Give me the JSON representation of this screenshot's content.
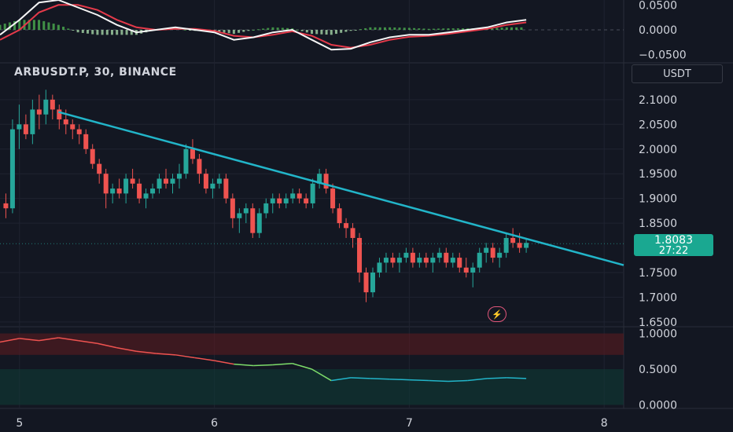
{
  "symbol_line": "ARBUSDT.P, 30, BINANCE",
  "currency_button": "USDT",
  "last_price": "1.8083",
  "countdown": "27:22",
  "colors": {
    "background": "#131722",
    "up": "#26a69a",
    "down": "#ef5350",
    "trendline": "#22b5c9",
    "macd_line": "#f5f5f5",
    "signal_line": "#e53a4a",
    "hist_up": "#4caf50",
    "hist_down": "#a5d6a7",
    "axis_text": "#d1d4dc",
    "price_tag": "#1aa891"
  },
  "icons": {
    "alert": "lightning-bolt-icon"
  },
  "chart_data": [
    {
      "type": "line",
      "name": "MACD pane",
      "y_ticks": [
        "0.0500",
        "0.0000",
        "−0.0500"
      ],
      "ylim": [
        -0.06,
        0.06
      ],
      "x": [
        4.9,
        5.0,
        5.1,
        5.2,
        5.3,
        5.4,
        5.5,
        5.6,
        5.7,
        5.8,
        5.9,
        6.0,
        6.1,
        6.2,
        6.3,
        6.4,
        6.5,
        6.6,
        6.7,
        6.8,
        6.9,
        7.0,
        7.1,
        7.2,
        7.3,
        7.4,
        7.5,
        7.6
      ],
      "series": [
        {
          "role": "macd",
          "values": [
            -0.01,
            0.02,
            0.055,
            0.06,
            0.045,
            0.03,
            0.01,
            -0.005,
            -0.0,
            0.005,
            0.0,
            -0.005,
            -0.02,
            -0.015,
            -0.005,
            0.0,
            -0.02,
            -0.04,
            -0.038,
            -0.025,
            -0.015,
            -0.01,
            -0.01,
            -0.005,
            -0.0,
            0.005,
            0.015,
            0.02
          ]
        },
        {
          "role": "signal",
          "values": [
            -0.02,
            0.0,
            0.035,
            0.05,
            0.05,
            0.04,
            0.02,
            0.005,
            0.0,
            0.002,
            0.002,
            -0.002,
            -0.012,
            -0.015,
            -0.01,
            -0.003,
            -0.012,
            -0.03,
            -0.036,
            -0.03,
            -0.02,
            -0.014,
            -0.012,
            -0.008,
            -0.003,
            0.002,
            0.01,
            0.015
          ]
        }
      ]
    },
    {
      "type": "candlestick",
      "name": "Price pane",
      "y_ticks": [
        "2.1000",
        "2.0500",
        "2.0000",
        "1.9500",
        "1.9000",
        "1.8500",
        "1.7500",
        "1.7000",
        "1.6500"
      ],
      "ylim": [
        1.645,
        2.13
      ],
      "x_ticks": [
        "5",
        "6",
        "7",
        "8"
      ],
      "xlim": [
        4.9,
        8.1
      ],
      "ohlc": [
        [
          1.89,
          1.91,
          1.86,
          1.88
        ],
        [
          1.88,
          2.06,
          1.87,
          2.04
        ],
        [
          2.04,
          2.09,
          2.0,
          2.05
        ],
        [
          2.05,
          2.07,
          2.02,
          2.03
        ],
        [
          2.03,
          2.1,
          2.01,
          2.08
        ],
        [
          2.08,
          2.11,
          2.04,
          2.07
        ],
        [
          2.07,
          2.12,
          2.05,
          2.1
        ],
        [
          2.1,
          2.11,
          2.06,
          2.08
        ],
        [
          2.08,
          2.09,
          2.04,
          2.06
        ],
        [
          2.06,
          2.08,
          2.03,
          2.05
        ],
        [
          2.05,
          2.06,
          2.02,
          2.04
        ],
        [
          2.04,
          2.05,
          2.01,
          2.03
        ],
        [
          2.03,
          2.04,
          1.99,
          2.0
        ],
        [
          2.0,
          2.01,
          1.96,
          1.97
        ],
        [
          1.97,
          1.98,
          1.93,
          1.95
        ],
        [
          1.95,
          1.96,
          1.88,
          1.91
        ],
        [
          1.91,
          1.93,
          1.89,
          1.92
        ],
        [
          1.92,
          1.94,
          1.9,
          1.91
        ],
        [
          1.91,
          1.95,
          1.89,
          1.94
        ],
        [
          1.94,
          1.96,
          1.92,
          1.93
        ],
        [
          1.93,
          1.94,
          1.89,
          1.9
        ],
        [
          1.9,
          1.92,
          1.88,
          1.91
        ],
        [
          1.91,
          1.93,
          1.9,
          1.92
        ],
        [
          1.92,
          1.95,
          1.91,
          1.94
        ],
        [
          1.94,
          1.96,
          1.92,
          1.93
        ],
        [
          1.93,
          1.95,
          1.91,
          1.94
        ],
        [
          1.94,
          1.97,
          1.92,
          1.95
        ],
        [
          1.95,
          2.01,
          1.94,
          2.0
        ],
        [
          2.0,
          2.02,
          1.97,
          1.98
        ],
        [
          1.98,
          1.99,
          1.93,
          1.95
        ],
        [
          1.95,
          1.96,
          1.91,
          1.92
        ],
        [
          1.92,
          1.94,
          1.9,
          1.93
        ],
        [
          1.93,
          1.95,
          1.92,
          1.94
        ],
        [
          1.94,
          1.95,
          1.89,
          1.9
        ],
        [
          1.9,
          1.91,
          1.84,
          1.86
        ],
        [
          1.86,
          1.88,
          1.83,
          1.87
        ],
        [
          1.87,
          1.89,
          1.85,
          1.88
        ],
        [
          1.88,
          1.89,
          1.82,
          1.83
        ],
        [
          1.83,
          1.88,
          1.82,
          1.87
        ],
        [
          1.87,
          1.9,
          1.86,
          1.89
        ],
        [
          1.89,
          1.91,
          1.87,
          1.9
        ],
        [
          1.9,
          1.91,
          1.88,
          1.89
        ],
        [
          1.89,
          1.91,
          1.88,
          1.9
        ],
        [
          1.9,
          1.92,
          1.89,
          1.91
        ],
        [
          1.91,
          1.92,
          1.89,
          1.9
        ],
        [
          1.9,
          1.91,
          1.88,
          1.89
        ],
        [
          1.89,
          1.94,
          1.88,
          1.93
        ],
        [
          1.93,
          1.96,
          1.92,
          1.95
        ],
        [
          1.95,
          1.96,
          1.91,
          1.92
        ],
        [
          1.92,
          1.93,
          1.87,
          1.88
        ],
        [
          1.88,
          1.89,
          1.84,
          1.85
        ],
        [
          1.85,
          1.86,
          1.82,
          1.84
        ],
        [
          1.84,
          1.85,
          1.8,
          1.82
        ],
        [
          1.82,
          1.83,
          1.73,
          1.75
        ],
        [
          1.75,
          1.76,
          1.69,
          1.71
        ],
        [
          1.71,
          1.76,
          1.7,
          1.75
        ],
        [
          1.75,
          1.78,
          1.74,
          1.77
        ],
        [
          1.77,
          1.79,
          1.75,
          1.78
        ],
        [
          1.78,
          1.79,
          1.76,
          1.77
        ],
        [
          1.77,
          1.79,
          1.75,
          1.78
        ],
        [
          1.78,
          1.8,
          1.77,
          1.79
        ],
        [
          1.79,
          1.8,
          1.76,
          1.77
        ],
        [
          1.77,
          1.79,
          1.76,
          1.78
        ],
        [
          1.78,
          1.79,
          1.76,
          1.77
        ],
        [
          1.77,
          1.79,
          1.75,
          1.78
        ],
        [
          1.78,
          1.8,
          1.77,
          1.79
        ],
        [
          1.79,
          1.8,
          1.76,
          1.77
        ],
        [
          1.77,
          1.79,
          1.76,
          1.78
        ],
        [
          1.78,
          1.79,
          1.75,
          1.76
        ],
        [
          1.76,
          1.78,
          1.74,
          1.75
        ],
        [
          1.75,
          1.77,
          1.72,
          1.76
        ],
        [
          1.76,
          1.8,
          1.75,
          1.79
        ],
        [
          1.79,
          1.81,
          1.77,
          1.8
        ],
        [
          1.8,
          1.81,
          1.77,
          1.78
        ],
        [
          1.78,
          1.8,
          1.76,
          1.79
        ],
        [
          1.79,
          1.83,
          1.78,
          1.82
        ],
        [
          1.82,
          1.84,
          1.8,
          1.81
        ],
        [
          1.81,
          1.83,
          1.79,
          1.8
        ],
        [
          1.8,
          1.82,
          1.79,
          1.81
        ]
      ]
    },
    {
      "type": "line",
      "name": "Trendline",
      "x": [
        5.2,
        8.1
      ],
      "values": [
        2.075,
        1.765
      ]
    },
    {
      "type": "line",
      "name": "Oscillator pane",
      "y_ticks": [
        "1.0000",
        "0.5000",
        "0.0000"
      ],
      "ylim": [
        -0.05,
        1.05
      ],
      "x": [
        4.9,
        5.0,
        5.1,
        5.2,
        5.3,
        5.4,
        5.5,
        5.6,
        5.7,
        5.8,
        5.9,
        6.0,
        6.1,
        6.2,
        6.3,
        6.4,
        6.5,
        6.6,
        6.7,
        6.8,
        6.9,
        7.0,
        7.1,
        7.2,
        7.3,
        7.4,
        7.5,
        7.6
      ],
      "values": [
        0.88,
        0.93,
        0.9,
        0.94,
        0.9,
        0.86,
        0.8,
        0.75,
        0.72,
        0.7,
        0.66,
        0.62,
        0.57,
        0.55,
        0.56,
        0.58,
        0.5,
        0.34,
        0.38,
        0.37,
        0.36,
        0.35,
        0.34,
        0.33,
        0.34,
        0.37,
        0.38,
        0.37
      ]
    }
  ]
}
